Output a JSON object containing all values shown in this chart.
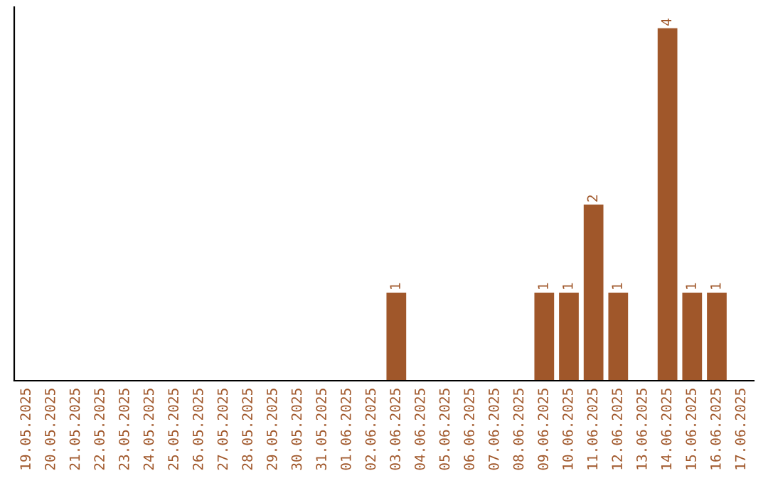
{
  "chart_data": {
    "type": "bar",
    "categories": [
      "19.05.2025",
      "20.05.2025",
      "21.05.2025",
      "22.05.2025",
      "23.05.2025",
      "24.05.2025",
      "25.05.2025",
      "26.05.2025",
      "27.05.2025",
      "28.05.2025",
      "29.05.2025",
      "30.05.2025",
      "31.05.2025",
      "01.06.2025",
      "02.06.2025",
      "03.06.2025",
      "04.06.2025",
      "05.06.2025",
      "06.06.2025",
      "07.06.2025",
      "08.06.2025",
      "09.06.2025",
      "10.06.2025",
      "11.06.2025",
      "12.06.2025",
      "13.06.2025",
      "14.06.2025",
      "15.06.2025",
      "16.06.2025",
      "17.06.2025"
    ],
    "values": [
      null,
      null,
      null,
      null,
      null,
      null,
      null,
      null,
      null,
      null,
      null,
      null,
      null,
      null,
      null,
      1,
      null,
      null,
      null,
      null,
      null,
      1,
      1,
      2,
      1,
      null,
      4,
      1,
      1,
      null
    ],
    "color": "#a0572a",
    "data_labels": true,
    "grid": false,
    "legend": false
  }
}
